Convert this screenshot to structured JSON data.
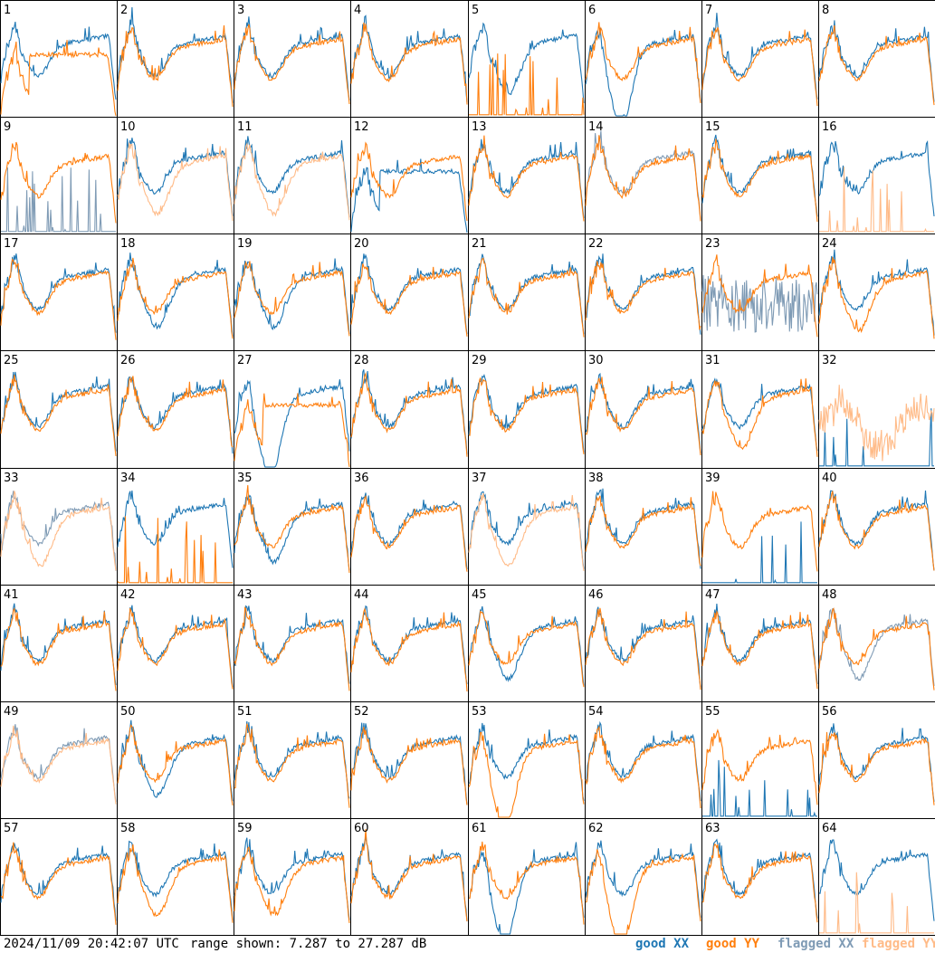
{
  "footer": {
    "timestamp": "2024/11/09 20:42:07 UTC",
    "range_text": "range shown: 7.287 to 27.287 dB"
  },
  "legend": [
    {
      "label": "good XX",
      "color": "#1f77b4"
    },
    {
      "label": "good YY",
      "color": "#ff7f0e"
    },
    {
      "label": "flagged XX",
      "color": "#7f9bb5"
    },
    {
      "label": "flagged YY",
      "color": "#ffbb88"
    }
  ],
  "chart_data": {
    "type": "line",
    "title": "",
    "grid_rows": 8,
    "grid_cols": 8,
    "y_range_db": [
      7.287,
      27.287
    ],
    "panels": [
      {
        "id": "1",
        "xx": "good",
        "yy": "good",
        "xx_shape": "normal",
        "yy_shape": "drop-high"
      },
      {
        "id": "2",
        "xx": "good",
        "yy": "good",
        "xx_shape": "normal",
        "yy_shape": "normal"
      },
      {
        "id": "3",
        "xx": "good",
        "yy": "good",
        "xx_shape": "normal",
        "yy_shape": "normal"
      },
      {
        "id": "4",
        "xx": "good",
        "yy": "good",
        "xx_shape": "normal",
        "yy_shape": "normal"
      },
      {
        "id": "5",
        "xx": "good",
        "yy": "good",
        "xx_shape": "dip",
        "yy_shape": "spiky-low"
      },
      {
        "id": "6",
        "xx": "good",
        "yy": "good",
        "xx_shape": "deep-dip",
        "yy_shape": "normal"
      },
      {
        "id": "7",
        "xx": "good",
        "yy": "good",
        "xx_shape": "normal",
        "yy_shape": "normal"
      },
      {
        "id": "8",
        "xx": "good",
        "yy": "good",
        "xx_shape": "normal",
        "yy_shape": "normal"
      },
      {
        "id": "9",
        "xx": "flagged",
        "yy": "good",
        "xx_shape": "spiky-low",
        "yy_shape": "normal"
      },
      {
        "id": "10",
        "xx": "good",
        "yy": "flagged",
        "xx_shape": "normal",
        "yy_shape": "dip"
      },
      {
        "id": "11",
        "xx": "good",
        "yy": "flagged",
        "xx_shape": "normal",
        "yy_shape": "dip"
      },
      {
        "id": "12",
        "xx": "good",
        "yy": "good",
        "xx_shape": "drop-high",
        "yy_shape": "normal"
      },
      {
        "id": "13",
        "xx": "good",
        "yy": "good",
        "xx_shape": "normal",
        "yy_shape": "normal"
      },
      {
        "id": "14",
        "xx": "flagged",
        "yy": "good",
        "xx_shape": "normal",
        "yy_shape": "normal"
      },
      {
        "id": "15",
        "xx": "good",
        "yy": "good",
        "xx_shape": "normal",
        "yy_shape": "normal"
      },
      {
        "id": "16",
        "xx": "good",
        "yy": "flagged",
        "xx_shape": "normal",
        "yy_shape": "spiky-low"
      },
      {
        "id": "17",
        "xx": "good",
        "yy": "good",
        "xx_shape": "normal",
        "yy_shape": "normal"
      },
      {
        "id": "18",
        "xx": "good",
        "yy": "good",
        "xx_shape": "dip",
        "yy_shape": "normal"
      },
      {
        "id": "19",
        "xx": "good",
        "yy": "good",
        "xx_shape": "dip",
        "yy_shape": "normal"
      },
      {
        "id": "20",
        "xx": "good",
        "yy": "good",
        "xx_shape": "normal",
        "yy_shape": "normal"
      },
      {
        "id": "21",
        "xx": "good",
        "yy": "good",
        "xx_shape": "normal",
        "yy_shape": "normal"
      },
      {
        "id": "22",
        "xx": "good",
        "yy": "good",
        "xx_shape": "normal",
        "yy_shape": "normal"
      },
      {
        "id": "23",
        "xx": "flagged",
        "yy": "good",
        "xx_shape": "noisy-low",
        "yy_shape": "normal"
      },
      {
        "id": "24",
        "xx": "good",
        "yy": "good",
        "xx_shape": "normal",
        "yy_shape": "dip"
      },
      {
        "id": "25",
        "xx": "good",
        "yy": "good",
        "xx_shape": "normal",
        "yy_shape": "normal"
      },
      {
        "id": "26",
        "xx": "good",
        "yy": "good",
        "xx_shape": "normal",
        "yy_shape": "normal"
      },
      {
        "id": "27",
        "xx": "good",
        "yy": "good",
        "xx_shape": "deep-dip",
        "yy_shape": "drop-high"
      },
      {
        "id": "28",
        "xx": "good",
        "yy": "good",
        "xx_shape": "normal",
        "yy_shape": "normal"
      },
      {
        "id": "29",
        "xx": "good",
        "yy": "good",
        "xx_shape": "normal",
        "yy_shape": "normal"
      },
      {
        "id": "30",
        "xx": "good",
        "yy": "good",
        "xx_shape": "normal",
        "yy_shape": "normal"
      },
      {
        "id": "31",
        "xx": "good",
        "yy": "good",
        "xx_shape": "normal",
        "yy_shape": "dip"
      },
      {
        "id": "32",
        "xx": "good",
        "yy": "flagged",
        "xx_shape": "spiky-low",
        "yy_shape": "noisy-mid"
      },
      {
        "id": "33",
        "xx": "flagged",
        "yy": "flagged",
        "xx_shape": "normal",
        "yy_shape": "dip"
      },
      {
        "id": "34",
        "xx": "good",
        "yy": "good",
        "xx_shape": "normal",
        "yy_shape": "spiky-low"
      },
      {
        "id": "35",
        "xx": "good",
        "yy": "good",
        "xx_shape": "dip",
        "yy_shape": "normal"
      },
      {
        "id": "36",
        "xx": "good",
        "yy": "good",
        "xx_shape": "normal",
        "yy_shape": "normal"
      },
      {
        "id": "37",
        "xx": "good",
        "yy": "flagged",
        "xx_shape": "normal",
        "yy_shape": "dip"
      },
      {
        "id": "38",
        "xx": "good",
        "yy": "good",
        "xx_shape": "normal",
        "yy_shape": "normal"
      },
      {
        "id": "39",
        "xx": "good",
        "yy": "good",
        "xx_shape": "spiky-low",
        "yy_shape": "normal"
      },
      {
        "id": "40",
        "xx": "good",
        "yy": "good",
        "xx_shape": "normal",
        "yy_shape": "normal"
      },
      {
        "id": "41",
        "xx": "good",
        "yy": "good",
        "xx_shape": "normal",
        "yy_shape": "normal"
      },
      {
        "id": "42",
        "xx": "good",
        "yy": "good",
        "xx_shape": "normal",
        "yy_shape": "normal"
      },
      {
        "id": "43",
        "xx": "good",
        "yy": "good",
        "xx_shape": "normal",
        "yy_shape": "normal"
      },
      {
        "id": "44",
        "xx": "good",
        "yy": "good",
        "xx_shape": "normal",
        "yy_shape": "normal"
      },
      {
        "id": "45",
        "xx": "good",
        "yy": "good",
        "xx_shape": "dip",
        "yy_shape": "normal"
      },
      {
        "id": "46",
        "xx": "good",
        "yy": "good",
        "xx_shape": "normal",
        "yy_shape": "normal"
      },
      {
        "id": "47",
        "xx": "good",
        "yy": "good",
        "xx_shape": "normal",
        "yy_shape": "normal"
      },
      {
        "id": "48",
        "xx": "flagged",
        "yy": "good",
        "xx_shape": "dip",
        "yy_shape": "normal"
      },
      {
        "id": "49",
        "xx": "flagged",
        "yy": "flagged",
        "xx_shape": "normal",
        "yy_shape": "normal"
      },
      {
        "id": "50",
        "xx": "good",
        "yy": "good",
        "xx_shape": "dip",
        "yy_shape": "normal"
      },
      {
        "id": "51",
        "xx": "good",
        "yy": "good",
        "xx_shape": "normal",
        "yy_shape": "normal"
      },
      {
        "id": "52",
        "xx": "good",
        "yy": "good",
        "xx_shape": "normal",
        "yy_shape": "normal"
      },
      {
        "id": "53",
        "xx": "good",
        "yy": "good",
        "xx_shape": "normal",
        "yy_shape": "deep-dip"
      },
      {
        "id": "54",
        "xx": "good",
        "yy": "good",
        "xx_shape": "normal",
        "yy_shape": "normal"
      },
      {
        "id": "55",
        "xx": "good",
        "yy": "good",
        "xx_shape": "spiky-low",
        "yy_shape": "normal"
      },
      {
        "id": "56",
        "xx": "good",
        "yy": "good",
        "xx_shape": "normal",
        "yy_shape": "normal"
      },
      {
        "id": "57",
        "xx": "good",
        "yy": "good",
        "xx_shape": "normal",
        "yy_shape": "normal"
      },
      {
        "id": "58",
        "xx": "good",
        "yy": "good",
        "xx_shape": "normal",
        "yy_shape": "dip"
      },
      {
        "id": "59",
        "xx": "good",
        "yy": "good",
        "xx_shape": "normal",
        "yy_shape": "dip"
      },
      {
        "id": "60",
        "xx": "good",
        "yy": "good",
        "xx_shape": "normal",
        "yy_shape": "normal"
      },
      {
        "id": "61",
        "xx": "good",
        "yy": "good",
        "xx_shape": "deep-dip",
        "yy_shape": "normal"
      },
      {
        "id": "62",
        "xx": "good",
        "yy": "good",
        "xx_shape": "normal",
        "yy_shape": "deep-dip"
      },
      {
        "id": "63",
        "xx": "good",
        "yy": "good",
        "xx_shape": "normal",
        "yy_shape": "normal"
      },
      {
        "id": "64",
        "xx": "good",
        "yy": "flagged",
        "xx_shape": "normal",
        "yy_shape": "spiky-low"
      }
    ]
  }
}
